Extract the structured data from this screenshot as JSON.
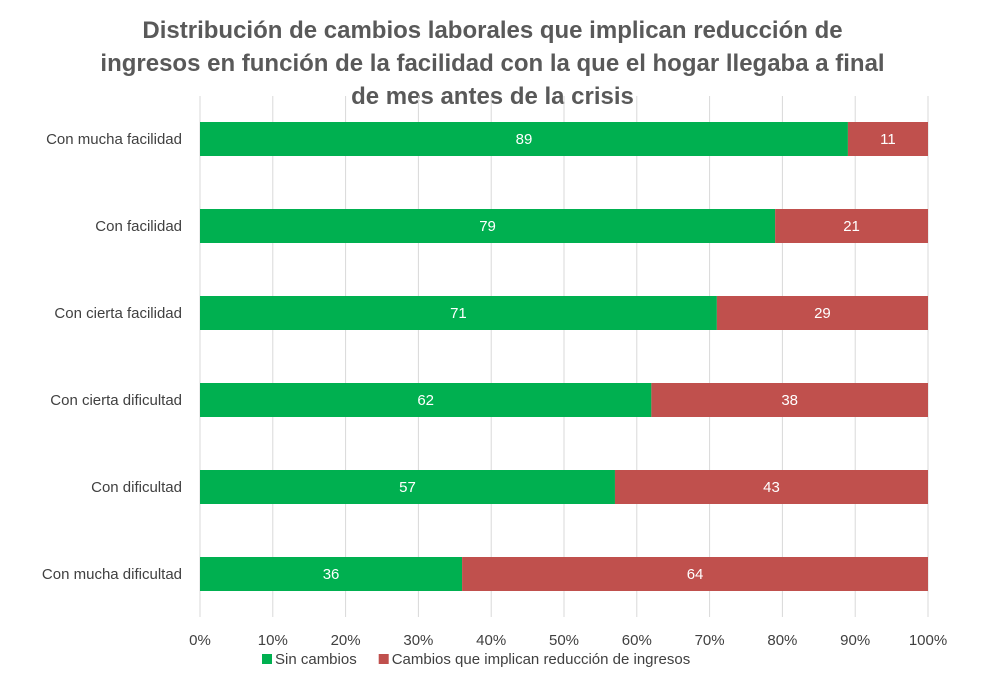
{
  "chart_data": {
    "type": "bar",
    "orientation": "horizontal",
    "stacked": true,
    "title": "Distribución de cambios laborales que implican reducción de ingresos en función de la facilidad con la que el hogar llegaba a final de mes antes de la crisis",
    "categories": [
      "Con mucha facilidad",
      "Con facilidad",
      "Con cierta facilidad",
      "Con cierta dificultad",
      "Con dificultad",
      "Con mucha dificultad"
    ],
    "series": [
      {
        "name": "Sin cambios",
        "color": "#00b050",
        "values": [
          89,
          79,
          71,
          62,
          57,
          36
        ]
      },
      {
        "name": "Cambios que implican reducción de ingresos",
        "color": "#c0504d",
        "values": [
          11,
          21,
          29,
          38,
          43,
          64
        ]
      }
    ],
    "xlim": [
      0,
      100
    ],
    "x_ticks": [
      "0%",
      "10%",
      "20%",
      "30%",
      "40%",
      "50%",
      "60%",
      "70%",
      "80%",
      "90%",
      "100%"
    ],
    "grid": true,
    "legend_position": "bottom"
  }
}
